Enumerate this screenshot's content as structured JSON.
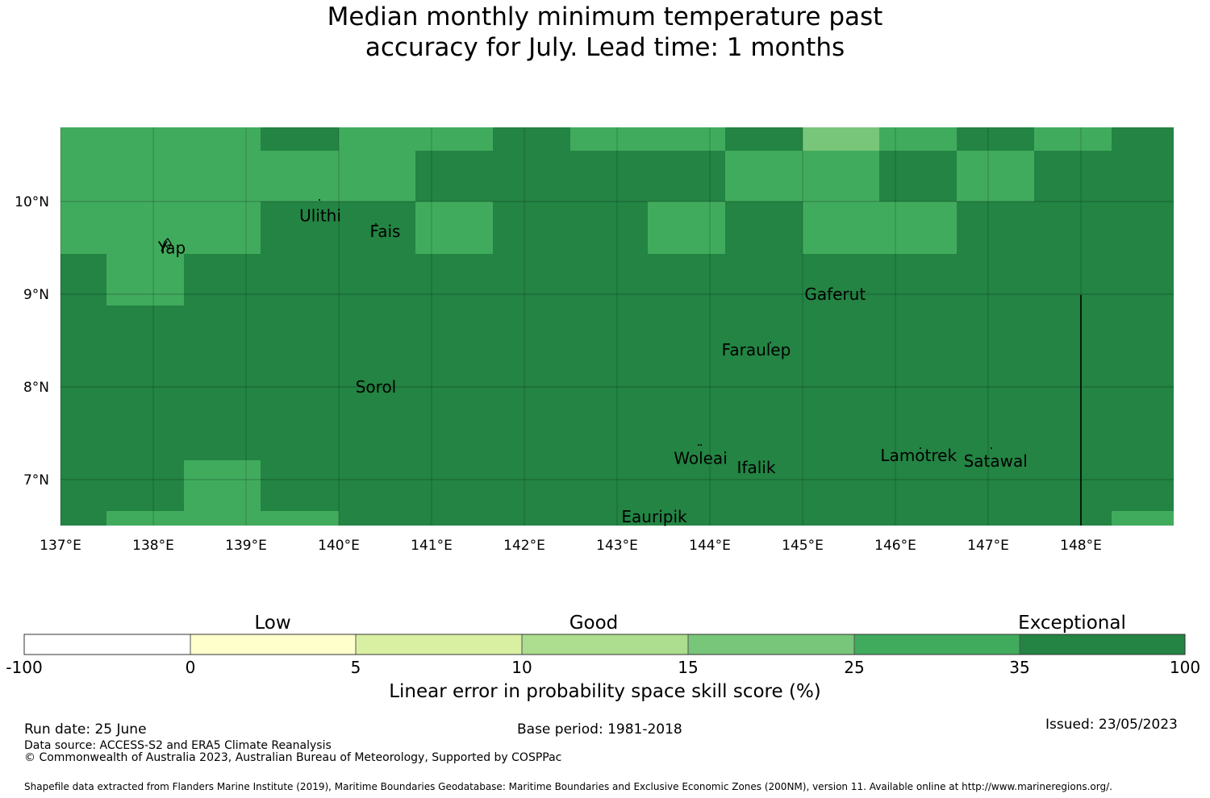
{
  "title_line1": "Median monthly minimum temperature past",
  "title_line2": "accuracy for July. Lead time: 1 months",
  "map": {
    "lon_range": [
      137,
      149
    ],
    "lat_range": [
      6.5,
      10.8
    ],
    "lon_ticks": [
      "137°E",
      "138°E",
      "139°E",
      "140°E",
      "141°E",
      "142°E",
      "143°E",
      "144°E",
      "145°E",
      "146°E",
      "147°E",
      "148°E"
    ],
    "lat_ticks": [
      "10°N",
      "9°N",
      "8°N",
      "7°N"
    ],
    "places": [
      {
        "name": "Ulithi",
        "lon": 139.8,
        "lat": 9.85
      },
      {
        "name": "Yap",
        "lon": 138.2,
        "lat": 9.5
      },
      {
        "name": "Fais",
        "lon": 140.5,
        "lat": 9.68
      },
      {
        "name": "Gaferut",
        "lon": 145.35,
        "lat": 9.0
      },
      {
        "name": "Faraulep",
        "lon": 144.5,
        "lat": 8.4
      },
      {
        "name": "Sorol",
        "lon": 140.4,
        "lat": 8.0
      },
      {
        "name": "Woleai",
        "lon": 143.9,
        "lat": 7.23
      },
      {
        "name": "Ifalik",
        "lon": 144.5,
        "lat": 7.13
      },
      {
        "name": "Lamotrek",
        "lon": 146.25,
        "lat": 7.26
      },
      {
        "name": "Satawal",
        "lon": 147.08,
        "lat": 7.2
      },
      {
        "name": "Eauripik",
        "lon": 143.4,
        "lat": 6.6
      }
    ]
  },
  "colorbar": {
    "categories": [
      "Low",
      "Good",
      "Exceptional"
    ],
    "ticks": [
      "-100",
      "0",
      "5",
      "10",
      "15",
      "25",
      "35",
      "100"
    ],
    "colors": [
      "#ffffff",
      "#ffffcc",
      "#d9f0a3",
      "#addd8e",
      "#78c679",
      "#41ab5d",
      "#238443"
    ],
    "label": "Linear error in probability space skill score (%)"
  },
  "footer": {
    "run_date": "Run date: 25 June",
    "base_period": "Base period: 1981-2018",
    "issued": "Issued: 23/05/2023",
    "data_source": "Data source: ACCESS-S2 and ERA5 Climate Reanalysis",
    "copyright": "© Commonwealth of Australia 2023, Australian Bureau of Meteorology, Supported by COSPPac",
    "shapefile": "Shapefile data extracted from Flanders Marine Institute (2019), Maritime Boundaries Geodatabase: Maritime Boundaries and Exclusive Economic Zones (200NM), version 11. Available online at http://www.marineregions.org/."
  }
}
